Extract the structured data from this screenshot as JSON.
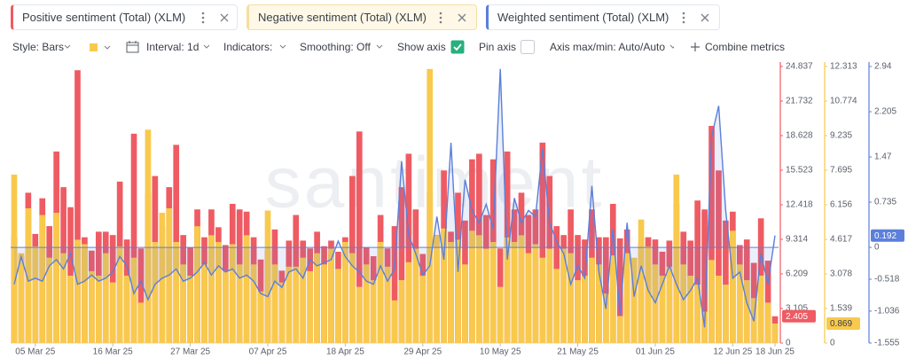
{
  "chart_data": {
    "type": "bar",
    "watermark": "santiment",
    "categories": [
      null,
      null,
      null,
      "05 Mar 25",
      null,
      null,
      null,
      null,
      null,
      null,
      null,
      null,
      null,
      null,
      "16 Mar 25",
      null,
      null,
      null,
      null,
      null,
      null,
      null,
      null,
      null,
      null,
      "27 Mar 25",
      null,
      null,
      null,
      null,
      null,
      null,
      null,
      null,
      null,
      null,
      "07 Apr 25",
      null,
      null,
      null,
      null,
      null,
      null,
      null,
      null,
      null,
      null,
      "18 Apr 25",
      null,
      null,
      null,
      null,
      null,
      null,
      null,
      null,
      null,
      null,
      "29 Apr 25",
      null,
      null,
      null,
      null,
      null,
      null,
      null,
      null,
      null,
      null,
      "10 May 25",
      null,
      null,
      null,
      null,
      null,
      null,
      null,
      null,
      null,
      null,
      "21 May 25",
      null,
      null,
      null,
      null,
      null,
      null,
      null,
      null,
      null,
      null,
      "01 Jun 25",
      null,
      null,
      null,
      null,
      null,
      null,
      null,
      null,
      null,
      null,
      "12 Jun 25",
      null,
      null,
      null,
      null,
      null,
      "18 Jun 25"
    ],
    "series": [
      {
        "name": "Positive sentiment (Total) (XLM)",
        "type": "bar",
        "color": "#ef5b63",
        "ylim": [
          0,
          24.837
        ],
        "yticks": [
          0,
          3.105,
          6.209,
          9.314,
          12.418,
          15.523,
          18.628,
          21.732,
          24.837
        ],
        "values": [
          9.5,
          7.8,
          13.5,
          9.8,
          13,
          10.5,
          17.2,
          14,
          12.2,
          24.5,
          9.5,
          8.3,
          10,
          10,
          9.7,
          14.5,
          9.3,
          18.8,
          8.5,
          13.5,
          15,
          10.5,
          14,
          17.8,
          9.7,
          8.6,
          12,
          9.5,
          12,
          10.4,
          8.8,
          12.5,
          12,
          11.8,
          9.5,
          7.5,
          8.3,
          10.2,
          6.5,
          9.2,
          11.5,
          9.2,
          8.5,
          10,
          8.7,
          9.2,
          8.2,
          9.5,
          15,
          19,
          8.6,
          7.8,
          11.5,
          8.5,
          10.5,
          14,
          17,
          12,
          8,
          13.5,
          9.7,
          15.5,
          10,
          13.5,
          11,
          16.5,
          17,
          11.5,
          16.5,
          8.5,
          17.2,
          12,
          13.5,
          11.5,
          12,
          18,
          15,
          10.5,
          9.7,
          12,
          9.7,
          9.3,
          12,
          9.5,
          9.5,
          12.5,
          9.4,
          10.2,
          7.4,
          9,
          9.5,
          9.3,
          8.2,
          9.2,
          12.5,
          10,
          9.2,
          12.8,
          12,
          19.5,
          15.5,
          11,
          11.8,
          8.8,
          9.3,
          7.2,
          11.2,
          7.4,
          2.405
        ]
      },
      {
        "name": "Negative sentiment (Total) (XLM)",
        "type": "bar",
        "color": "#f8c94c",
        "ylim": [
          0,
          12.313
        ],
        "yticks": [
          0,
          1.539,
          3.078,
          4.617,
          6.156,
          7.695,
          9.235,
          10.774,
          12.313
        ],
        "values": [
          7.5,
          4.0,
          6.0,
          4.3,
          5.7,
          3.8,
          5.8,
          4.0,
          3.0,
          4.6,
          4.4,
          3.2,
          3.0,
          4.0,
          2.7,
          4.3,
          3.0,
          3.8,
          1.8,
          9.5,
          4.5,
          5.8,
          6.0,
          4.5,
          3.5,
          3.0,
          5.2,
          3.5,
          4.8,
          4.5,
          3.2,
          4.4,
          3.5,
          4.8,
          3.5,
          2.3,
          5.9,
          3.5,
          2.7,
          3.4,
          3.4,
          3.8,
          3.2,
          4.0,
          3.5,
          4.2,
          3.3,
          4.5,
          4.0,
          2.5,
          3.5,
          2.8,
          4.5,
          3.4,
          1.9,
          2.8,
          3.6,
          4.2,
          3.0,
          12.2,
          4.8,
          5.1,
          4.5,
          4.6,
          3.5,
          5.0,
          4.8,
          4.2,
          4.5,
          2.5,
          4.7,
          4.5,
          4.8,
          4.0,
          4.4,
          3.8,
          4.2,
          3.3,
          4.2,
          4.0,
          2.8,
          3.0,
          3.8,
          3.5,
          2.2,
          3.9,
          1.2,
          4.0,
          3.8,
          5.5,
          4.3,
          3.5,
          3.0,
          3.4,
          7.5,
          3.5,
          3.0,
          2.6,
          1.4,
          3.7,
          3.0,
          2.6,
          5.0,
          3.5,
          2.8,
          2.0,
          3.0,
          1.8,
          0.869
        ]
      },
      {
        "name": "Weighted sentiment (Total) (XLM)",
        "type": "line",
        "color": "#5b7fdb",
        "ylim": [
          -1.555,
          2.94
        ],
        "yticks": [
          -1.555,
          -1.036,
          -0.518,
          0,
          0.735,
          1.47,
          2.205,
          2.94
        ],
        "values": [
          -0.6,
          -0.15,
          -0.55,
          -0.5,
          -0.55,
          -0.3,
          -0.2,
          -0.35,
          -0.1,
          -0.6,
          -0.55,
          -0.45,
          -0.55,
          -0.5,
          -0.4,
          -0.15,
          -0.3,
          -0.75,
          -0.55,
          -0.85,
          -0.6,
          -0.5,
          -0.45,
          -0.35,
          -0.55,
          -0.5,
          -0.4,
          -0.25,
          -0.45,
          -0.3,
          -0.4,
          -0.35,
          -0.5,
          -0.45,
          -0.55,
          -0.75,
          -0.8,
          -0.55,
          -0.65,
          -0.4,
          -0.35,
          -0.5,
          -0.2,
          -0.3,
          -0.25,
          -0.2,
          0.1,
          -0.15,
          -0.3,
          -0.4,
          -0.55,
          -0.6,
          -0.3,
          -0.55,
          -0.35,
          1.4,
          0.2,
          -0.1,
          -0.45,
          -0.3,
          0.5,
          -0.2,
          1.7,
          -0.4,
          1.1,
          0.6,
          0.4,
          0.7,
          0.3,
          2.9,
          -0.2,
          0.8,
          0.4,
          0.6,
          0.5,
          1.6,
          0.4,
          0.1,
          -0.1,
          -0.6,
          -0.3,
          -0.5,
          1.0,
          -0.4,
          -1.0,
          0.3,
          -1.1,
          0.4,
          -0.8,
          -0.3,
          -0.7,
          -0.9,
          -0.6,
          -0.3,
          -0.6,
          -0.85,
          -0.7,
          -0.5,
          -1.3,
          1.8,
          2.3,
          0.6,
          -0.5,
          -0.4,
          -0.9,
          -1.2,
          -0.1,
          -0.6,
          0.192
        ]
      }
    ]
  },
  "toolbar": {
    "style": "Style: Bars",
    "interval": "Interval: 1d",
    "indicators": "Indicators:",
    "smoothing": "Smoothing: Off",
    "show_axis": "Show axis",
    "pin_axis": "Pin axis",
    "axis_range": "Axis max/min: Auto/Auto",
    "combine": "Combine metrics"
  }
}
